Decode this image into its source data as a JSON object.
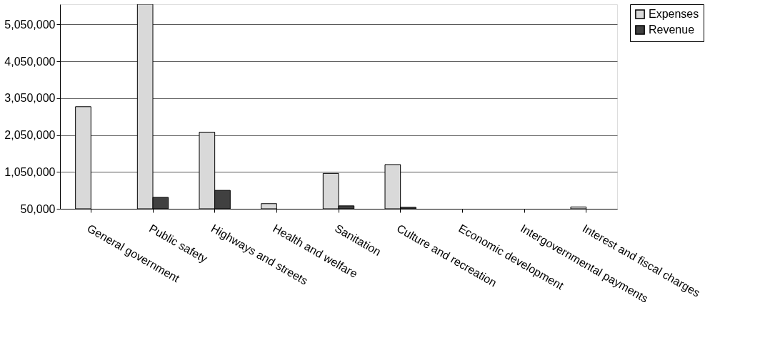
{
  "chart_data": {
    "type": "bar",
    "categories": [
      "General government",
      "Public safety",
      "Highways and streets",
      "Health and welfare",
      "Sanitation",
      "Culture and recreation",
      "Economic development",
      "Intergovernmental payments",
      "Interest and fiscal charges"
    ],
    "series": [
      {
        "name": "Expenses",
        "color": "#d9d9d9",
        "values": [
          2820000,
          5600000,
          2130000,
          190000,
          1010000,
          1250000,
          null,
          null,
          100000
        ]
      },
      {
        "name": "Revenue",
        "color": "#404040",
        "values": [
          null,
          360000,
          550000,
          null,
          130000,
          90000,
          null,
          null,
          null
        ]
      }
    ],
    "ylim": [
      50000,
      5600000
    ],
    "yticks": [
      {
        "value": 50000,
        "label": "50,000"
      },
      {
        "value": 1050000,
        "label": "1,050,000"
      },
      {
        "value": 2050000,
        "label": "2,050,000"
      },
      {
        "value": 3050000,
        "label": "3,050,000"
      },
      {
        "value": 4050000,
        "label": "4,050,000"
      },
      {
        "value": 5050000,
        "label": "5,050,000"
      }
    ],
    "grid": "y",
    "legend": "right"
  }
}
